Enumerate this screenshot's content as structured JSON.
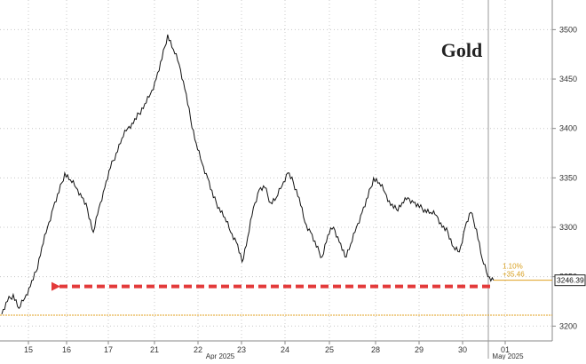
{
  "chart_data": {
    "type": "line",
    "title": "Gold",
    "xlabel": "",
    "ylabel": "",
    "x_ticks": [
      "15",
      "16",
      "17",
      "21",
      "22",
      "23",
      "24",
      "25",
      "28",
      "29",
      "30",
      "01"
    ],
    "x_month_labels": [
      "Apr 2025",
      "May 2025"
    ],
    "y_ticks": [
      3200,
      3250,
      3300,
      3350,
      3400,
      3450,
      3500
    ],
    "ylim": [
      3185,
      3530
    ],
    "grid": true,
    "series": [
      {
        "values": [
          3212,
          3225,
          3232,
          3218,
          3228,
          3240,
          3255,
          3280,
          3300,
          3320,
          3335,
          3355,
          3348,
          3340,
          3330,
          3318,
          3295,
          3320,
          3340,
          3360,
          3375,
          3390,
          3400,
          3405,
          3415,
          3425,
          3435,
          3450,
          3470,
          3495,
          3480,
          3465,
          3440,
          3410,
          3385,
          3365,
          3350,
          3330,
          3320,
          3310,
          3295,
          3285,
          3265,
          3290,
          3320,
          3338,
          3340,
          3325,
          3330,
          3342,
          3355,
          3345,
          3330,
          3305,
          3295,
          3280,
          3270,
          3292,
          3300,
          3285,
          3270,
          3283,
          3300,
          3315,
          3330,
          3350,
          3345,
          3335,
          3322,
          3318,
          3325,
          3330,
          3325,
          3320,
          3318,
          3315,
          3312,
          3300,
          3295,
          3280,
          3275,
          3300,
          3315,
          3298,
          3268,
          3250,
          3246.39
        ]
      }
    ],
    "last_value": "3246.39",
    "annotation_pct": "1.10%",
    "annotation_abs": "+35.46",
    "reference_value": 3211,
    "current_value": 3246.39
  }
}
